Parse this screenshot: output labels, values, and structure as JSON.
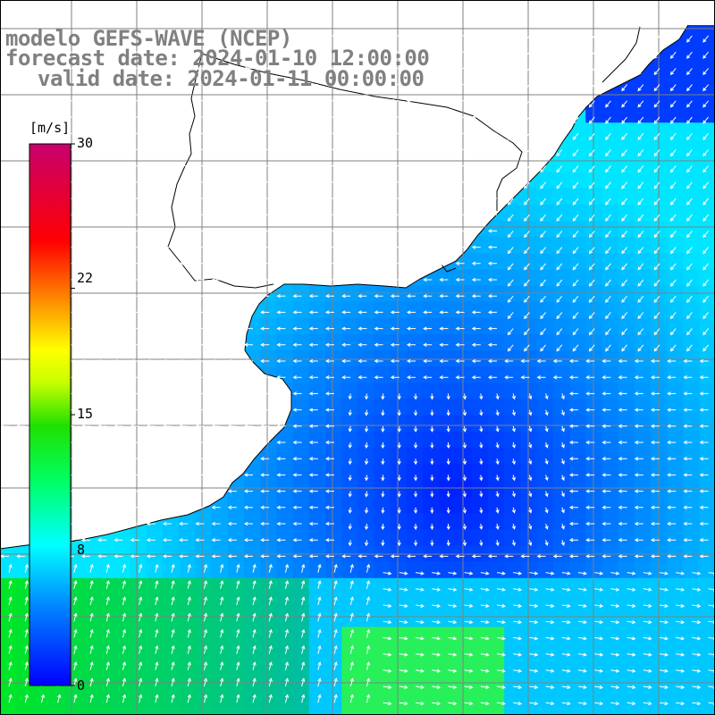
{
  "title": {
    "line1": "modelo GEFS-WAVE (NCEP)",
    "line2": "forecast date: 2024-01-10 12:00:00",
    "line3": "valid date: 2024-01-11 00:00:00"
  },
  "colorbar": {
    "unit": "[m/s]",
    "ticks": [
      "30",
      "22",
      "15",
      "8",
      "0"
    ],
    "tick_values": [
      30,
      22,
      15,
      8,
      0
    ],
    "range": [
      0,
      30
    ],
    "stops": [
      "#0000ff",
      "#00a0ff",
      "#00ffff",
      "#00ff40",
      "#00c800",
      "#ffff00",
      "#ff8000",
      "#ff0000",
      "#c8006e"
    ]
  },
  "map": {
    "land_color": "#ffffff",
    "coast_color": "#000000",
    "grid_color": "#808080",
    "vector_color": "#ffffff"
  }
}
